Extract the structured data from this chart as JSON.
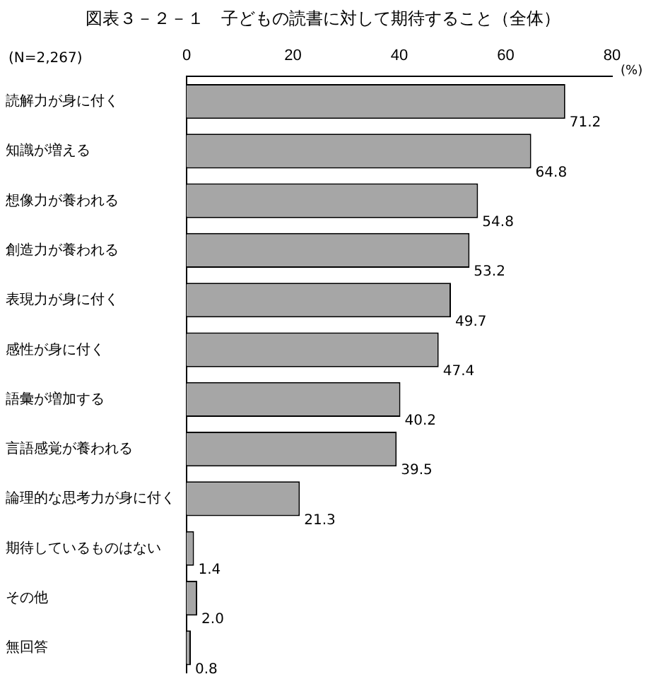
{
  "chart_data": {
    "type": "bar",
    "orientation": "horizontal",
    "title": "図表３－２－１　子どもの読書に対して期待すること（全体）",
    "xlabel": "(%)",
    "annotations": [
      "(N=2,267)"
    ],
    "categories": [
      "読解力が身に付く",
      "知識が増える",
      "想像力が養われる",
      "創造力が養われる",
      "表現力が身に付く",
      "感性が身に付く",
      "語彙が増加する",
      "言語感覚が養われる",
      "論理的な思考力が身に付く",
      "期待しているものはない",
      "その他",
      "無回答"
    ],
    "values": [
      71.2,
      64.8,
      54.8,
      53.2,
      49.7,
      47.4,
      40.2,
      39.5,
      21.3,
      1.4,
      2.0,
      0.8
    ],
    "value_labels": [
      "71.2",
      "64.8",
      "54.8",
      "53.2",
      "49.7",
      "47.4",
      "40.2",
      "39.5",
      "21.3",
      "1.4",
      "2.0",
      "0.8"
    ],
    "color": "#a6a6a6",
    "xlim": [
      0,
      80
    ],
    "xticks": [
      0,
      20,
      40,
      60,
      80
    ],
    "grid": false,
    "legend": false
  }
}
